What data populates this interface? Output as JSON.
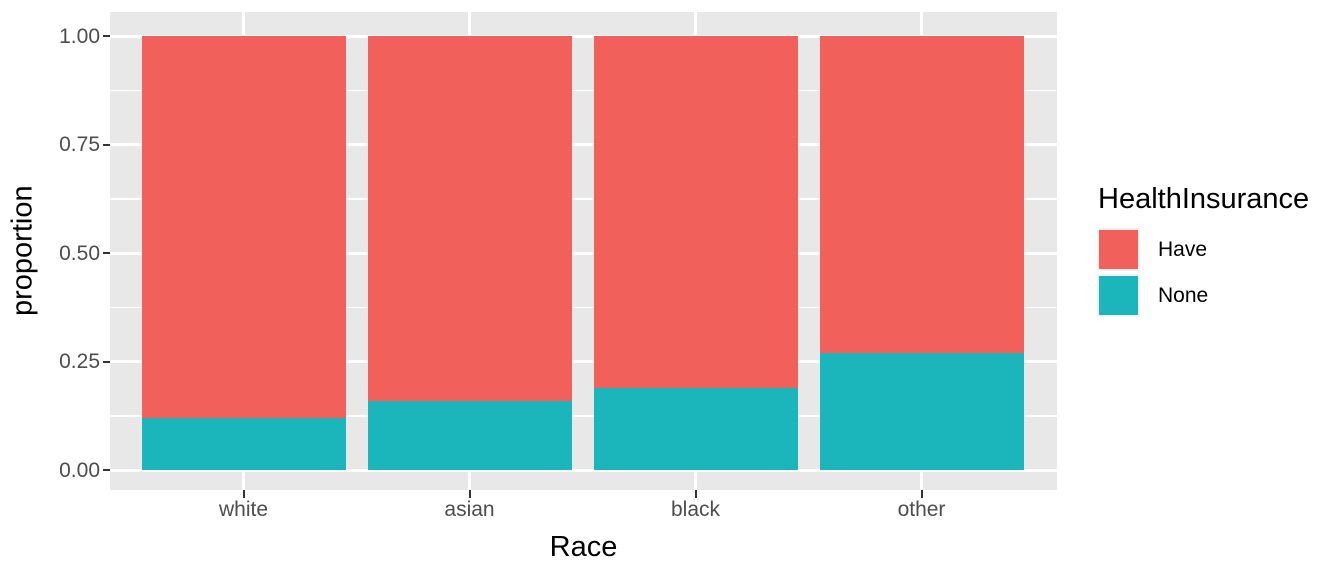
{
  "chart_data": {
    "type": "bar",
    "stacked": true,
    "normalized": true,
    "orientation": "vertical",
    "title": "",
    "xlabel": "Race",
    "ylabel": "proportion",
    "categories": [
      "white",
      "asian",
      "black",
      "other"
    ],
    "series": [
      {
        "name": "Have",
        "color": "#F2605C",
        "values": [
          0.88,
          0.84,
          0.81,
          0.73
        ]
      },
      {
        "name": "None",
        "color": "#1BB6BC",
        "values": [
          0.12,
          0.16,
          0.19,
          0.27
        ]
      }
    ],
    "y_axis": {
      "range": [
        0,
        1
      ],
      "tick_labels": [
        "1.00",
        "0.75",
        "0.50",
        "0.25",
        "0.00"
      ],
      "tick_values": [
        1.0,
        0.75,
        0.5,
        0.25,
        0.0
      ],
      "minor_tick_values": [
        0.875,
        0.625,
        0.375,
        0.125
      ],
      "grid": true
    },
    "legend": {
      "title": "HealthInsurance",
      "position": "right",
      "items": [
        {
          "label": "Have",
          "color": "#F2605C"
        },
        {
          "label": "None",
          "color": "#1BB6BC"
        }
      ]
    },
    "theme": {
      "panel_bg": "#E8E8E8",
      "grid_color": "#FFFFFF",
      "tick_text_color": "#4D4D4D",
      "title_text_color": "#000000",
      "tick_mark_color": "#333333",
      "legend_key_bg": "#F2F2F2"
    }
  }
}
